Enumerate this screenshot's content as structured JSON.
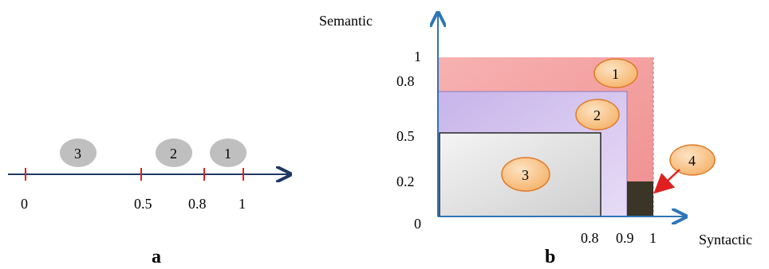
{
  "colors": {
    "axis": "#2e75b6",
    "axis_line_a": "#1f3864",
    "tick": "#e02020",
    "gray_ellipse": "#bfbfbf",
    "region1": "#f4a3a3",
    "region2": "#c9b8e8",
    "region3": "#e8e8e8",
    "region4": "#3a3526",
    "badge_fill": "#f7c58a",
    "badge_stroke": "#e07b2a",
    "arrow4": "#e02020"
  },
  "panel_a": {
    "caption": "a",
    "ticks": [
      "0",
      "0.5",
      "0.8",
      "1"
    ],
    "markers": [
      "3",
      "2",
      "1"
    ]
  },
  "panel_b": {
    "caption": "b",
    "y_axis_label": "Semantic",
    "x_axis_label": "Syntactic",
    "y_ticks": [
      "1",
      "0.8",
      "0.5",
      "0.2",
      "0"
    ],
    "x_ticks": [
      "0.8",
      "0.9",
      "1"
    ],
    "regions": [
      "1",
      "2",
      "3",
      "4"
    ]
  }
}
